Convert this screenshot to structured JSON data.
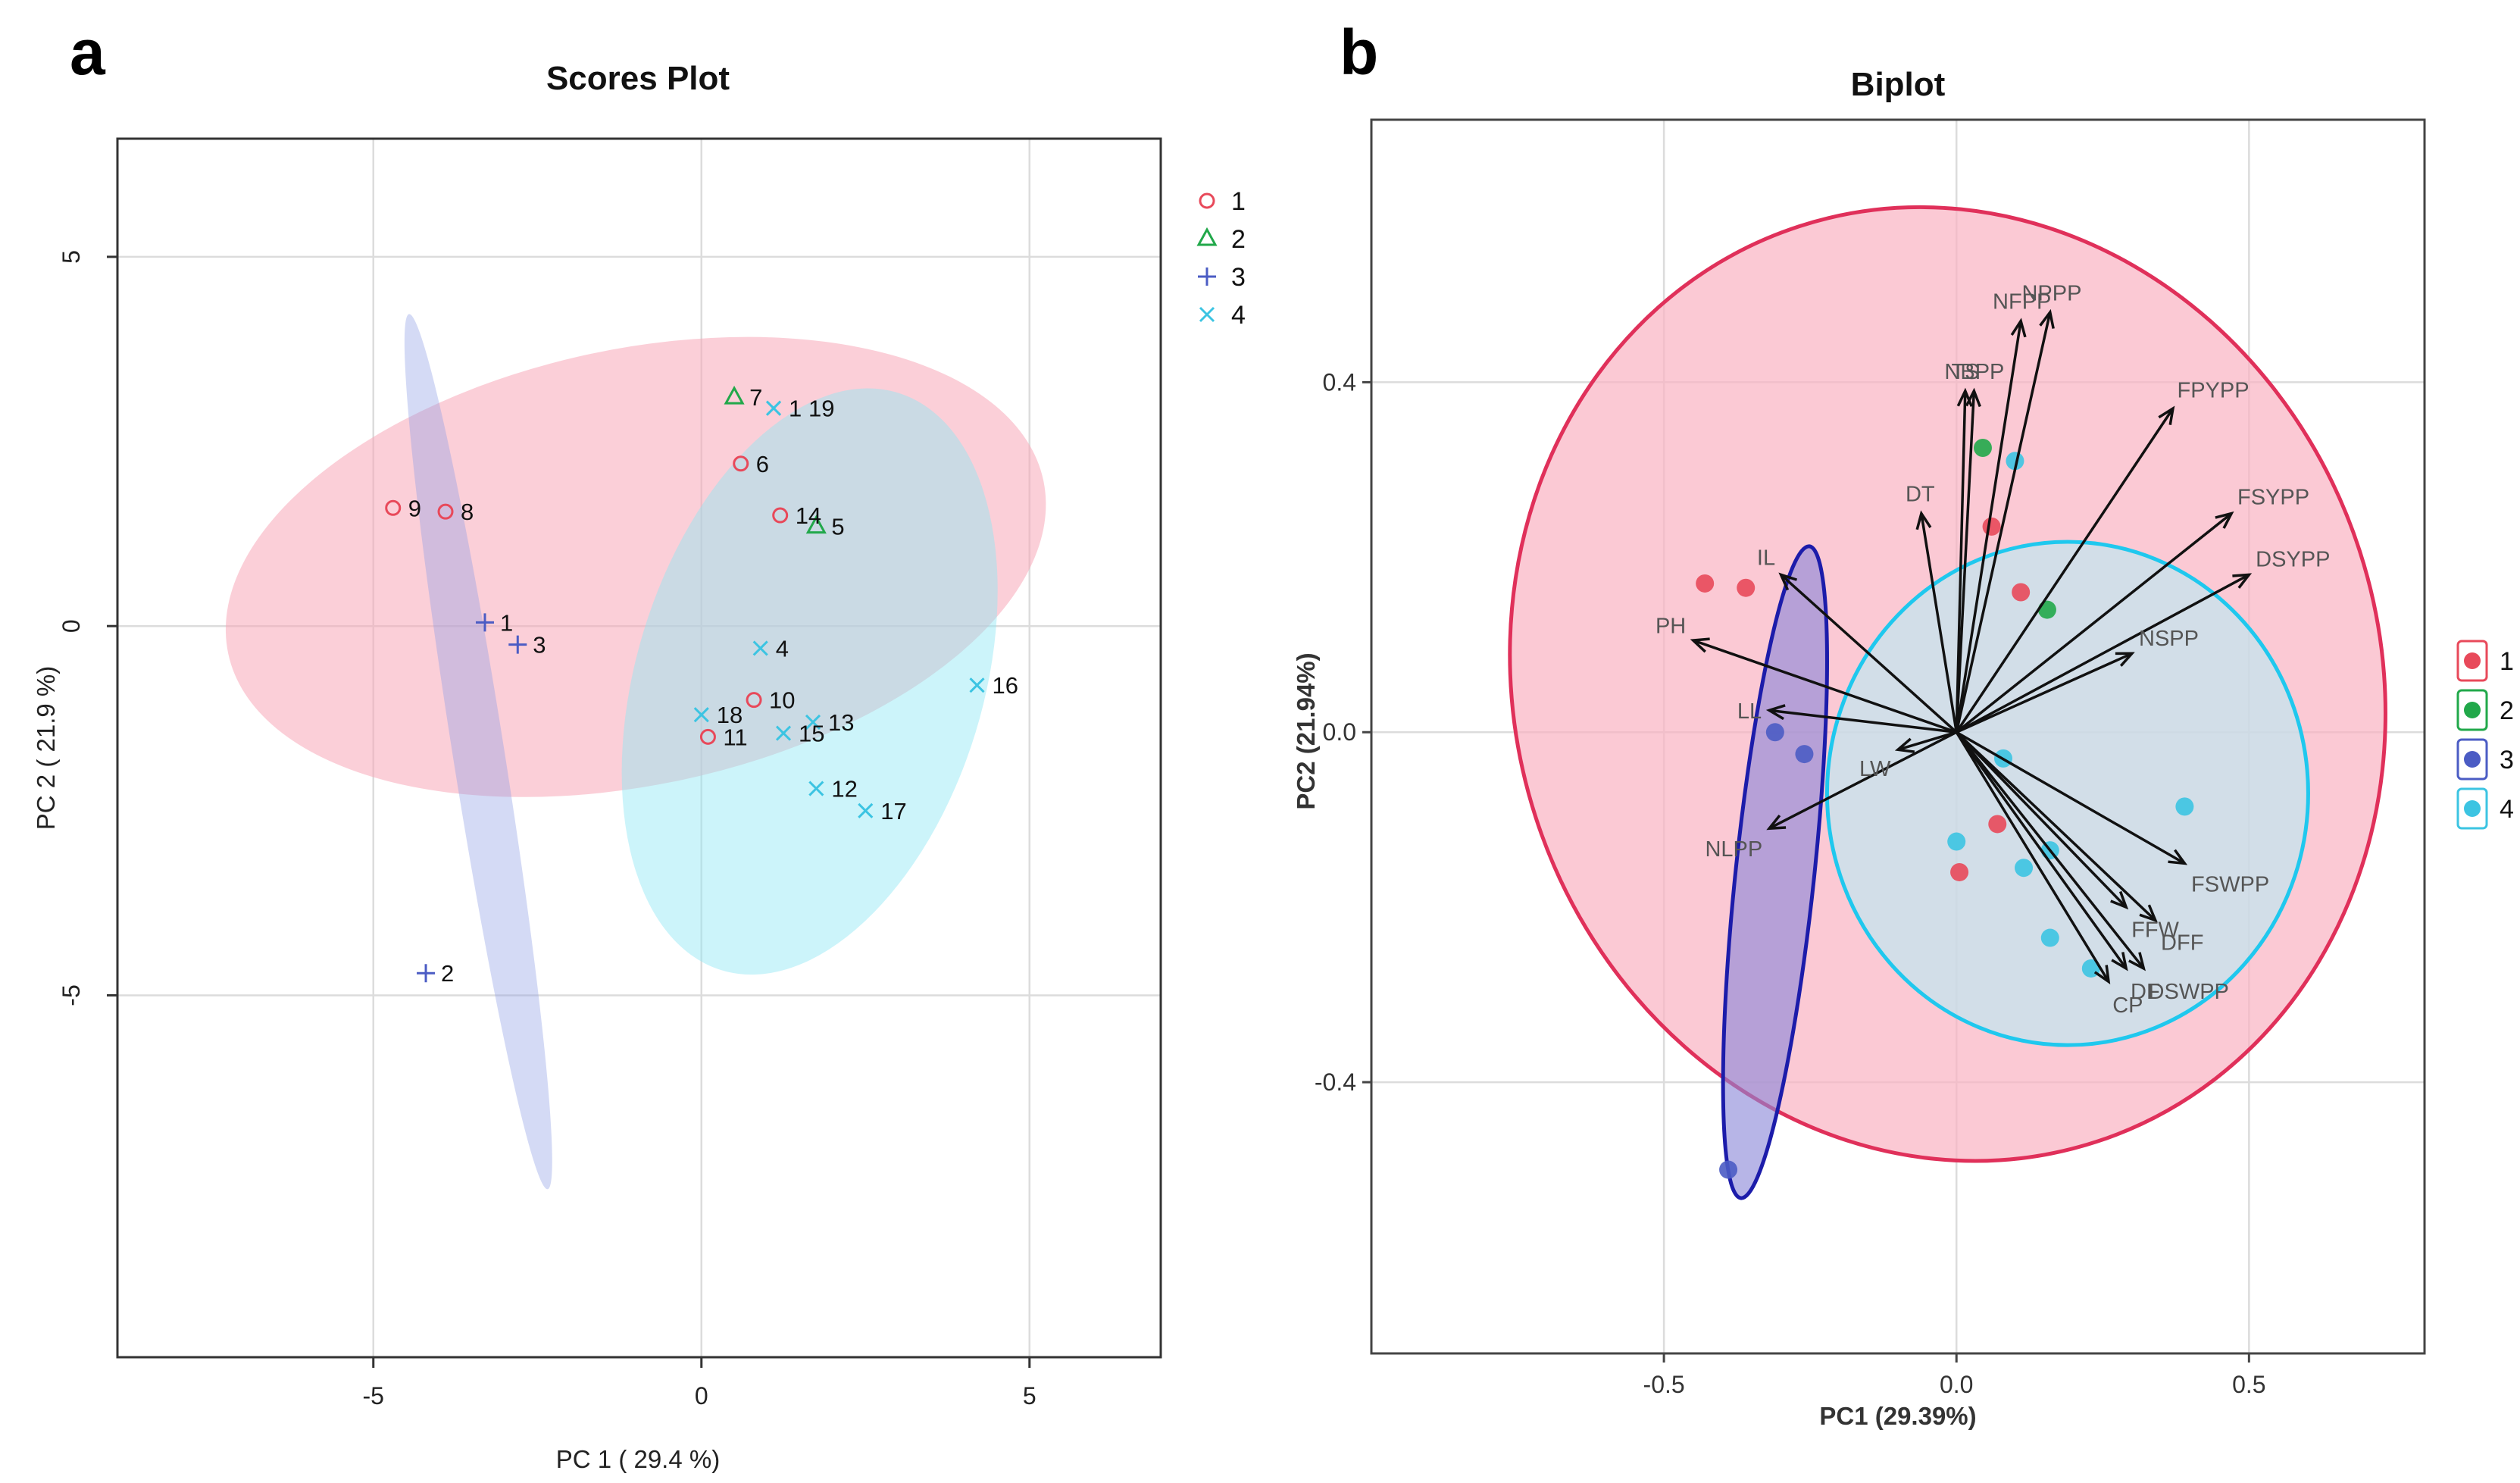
{
  "panels": {
    "a": {
      "letter": "a",
      "title": "Scores Plot",
      "xlabel": "PC 1 ( 29.4 %)",
      "ylabel": "PC 2 ( 21.9 %)",
      "xticks": [
        "-5",
        "0",
        "5"
      ],
      "yticks": [
        "5",
        "0",
        "-5"
      ],
      "legend": [
        "1",
        "2",
        "3",
        "4"
      ]
    },
    "b": {
      "letter": "b",
      "title": "Biplot",
      "xlabel": "PC1 (29.39%)",
      "ylabel": "PC2 (21.94%)",
      "xticks": [
        "-0.5",
        "0.0",
        "0.5"
      ],
      "yticks": [
        "0.4",
        "0.0",
        "-0.4"
      ],
      "legend": [
        "1",
        "2",
        "3",
        "4"
      ]
    }
  },
  "colors": {
    "g1": "#e8495a",
    "g2": "#21a84a",
    "g3": "#4b5cc4",
    "g4": "#3cc4e2",
    "dark_red": "#e0305a",
    "dark_blue": "#1c1caa",
    "cyan_line": "#1fc8ee"
  },
  "chart_data": [
    {
      "type": "scatter",
      "title": "Scores Plot",
      "xlabel": "PC 1 ( 29.4 %)",
      "ylabel": "PC 2 ( 21.9 %)",
      "xlim": [
        -8.9,
        7
      ],
      "ylim": [
        -9.9,
        6.6
      ],
      "groups": [
        "1",
        "2",
        "3",
        "4"
      ],
      "points": [
        {
          "label": "9",
          "group": "1",
          "x": -4.7,
          "y": 1.6
        },
        {
          "label": "8",
          "group": "1",
          "x": -3.9,
          "y": 1.55
        },
        {
          "label": "6",
          "group": "1",
          "x": 0.6,
          "y": 2.2
        },
        {
          "label": "14",
          "group": "1",
          "x": 1.2,
          "y": 1.5
        },
        {
          "label": "10",
          "group": "1",
          "x": 0.8,
          "y": -1.0
        },
        {
          "label": "11",
          "group": "1",
          "x": 0.1,
          "y": -1.5
        },
        {
          "label": "7",
          "group": "2",
          "x": 0.5,
          "y": 3.1
        },
        {
          "label": "5",
          "group": "2",
          "x": 1.75,
          "y": 1.35
        },
        {
          "label": "1",
          "group": "3",
          "x": -3.3,
          "y": 0.05
        },
        {
          "label": "3",
          "group": "3",
          "x": -2.8,
          "y": -0.25
        },
        {
          "label": "2",
          "group": "3",
          "x": -4.2,
          "y": -4.7
        },
        {
          "label": "1",
          "group": "4",
          "x": 1.1,
          "y": 2.95
        },
        {
          "label": "19",
          "group": "4",
          "x": 1.1,
          "y": 2.95
        },
        {
          "label": "4",
          "group": "4",
          "x": 0.9,
          "y": -0.3
        },
        {
          "label": "16",
          "group": "4",
          "x": 4.2,
          "y": -0.8
        },
        {
          "label": "18",
          "group": "4",
          "x": 0.0,
          "y": -1.2
        },
        {
          "label": "13",
          "group": "4",
          "x": 1.7,
          "y": -1.3
        },
        {
          "label": "15",
          "group": "4",
          "x": 1.25,
          "y": -1.45
        },
        {
          "label": "12",
          "group": "4",
          "x": 1.75,
          "y": -2.2
        },
        {
          "label": "17",
          "group": "4",
          "x": 2.5,
          "y": -2.5
        }
      ],
      "ellipses": [
        {
          "group": "1",
          "cx": -1.0,
          "cy": 0.8,
          "rx": 6.35,
          "ry": 2.95,
          "angle_deg": -12
        },
        {
          "group": "4",
          "cx": 1.65,
          "cy": -0.75,
          "rx": 4.6,
          "ry": 2.35,
          "angle_deg": -73
        },
        {
          "group": "3",
          "cx": -3.4,
          "cy": -1.7,
          "rx": 6.75,
          "ry": 0.35,
          "angle_deg": 81
        }
      ]
    },
    {
      "type": "scatter",
      "title": "Biplot",
      "xlabel": "PC1 (29.39%)",
      "ylabel": "PC2 (21.94%)",
      "xlim": [
        -1.0,
        0.8
      ],
      "ylim": [
        -0.71,
        0.7
      ],
      "groups": [
        "1",
        "2",
        "3",
        "4"
      ],
      "points": [
        {
          "group": "1",
          "x": -0.43,
          "y": 0.17
        },
        {
          "group": "1",
          "x": -0.36,
          "y": 0.165
        },
        {
          "group": "1",
          "x": 0.06,
          "y": 0.235
        },
        {
          "group": "1",
          "x": 0.11,
          "y": 0.16
        },
        {
          "group": "1",
          "x": 0.07,
          "y": -0.105
        },
        {
          "group": "1",
          "x": 0.005,
          "y": -0.16
        },
        {
          "group": "2",
          "x": 0.045,
          "y": 0.325
        },
        {
          "group": "2",
          "x": 0.155,
          "y": 0.14
        },
        {
          "group": "3",
          "x": -0.31,
          "y": 0.0
        },
        {
          "group": "3",
          "x": -0.26,
          "y": -0.025
        },
        {
          "group": "3",
          "x": -0.39,
          "y": -0.5
        },
        {
          "group": "4",
          "x": 0.1,
          "y": 0.31
        },
        {
          "group": "4",
          "x": 0.08,
          "y": -0.03
        },
        {
          "group": "4",
          "x": 0.0,
          "y": -0.125
        },
        {
          "group": "4",
          "x": 0.115,
          "y": -0.155
        },
        {
          "group": "4",
          "x": 0.16,
          "y": -0.135
        },
        {
          "group": "4",
          "x": 0.16,
          "y": -0.235
        },
        {
          "group": "4",
          "x": 0.23,
          "y": -0.27
        },
        {
          "group": "4",
          "x": 0.39,
          "y": -0.085
        }
      ],
      "vectors": [
        {
          "label": "NPPP",
          "x": 0.16,
          "y": 0.48
        },
        {
          "label": "NFPP",
          "x": 0.11,
          "y": 0.47
        },
        {
          "label": "NBPP",
          "x": 0.03,
          "y": 0.39
        },
        {
          "label": "TS",
          "x": 0.015,
          "y": 0.39
        },
        {
          "label": "DT",
          "x": -0.06,
          "y": 0.25
        },
        {
          "label": "FPYPP",
          "x": 0.37,
          "y": 0.37
        },
        {
          "label": "FSYPP",
          "x": 0.47,
          "y": 0.25
        },
        {
          "label": "DSYPP",
          "x": 0.5,
          "y": 0.18
        },
        {
          "label": "NSPP",
          "x": 0.3,
          "y": 0.09
        },
        {
          "label": "IL",
          "x": -0.3,
          "y": 0.18
        },
        {
          "label": "PH",
          "x": -0.45,
          "y": 0.105
        },
        {
          "label": "LL",
          "x": -0.32,
          "y": 0.025
        },
        {
          "label": "LW",
          "x": -0.1,
          "y": -0.02
        },
        {
          "label": "NLPP",
          "x": -0.32,
          "y": -0.11
        },
        {
          "label": "FSWPP",
          "x": 0.39,
          "y": -0.15
        },
        {
          "label": "DFF",
          "x": 0.34,
          "y": -0.215
        },
        {
          "label": "FFW",
          "x": 0.29,
          "y": -0.2
        },
        {
          "label": "DF",
          "x": 0.29,
          "y": -0.27
        },
        {
          "label": "DSWPP",
          "x": 0.32,
          "y": -0.27
        },
        {
          "label": "CP",
          "x": 0.26,
          "y": -0.285
        }
      ],
      "ellipses": [
        {
          "group": "1",
          "cx": -0.015,
          "cy": 0.055,
          "rx": 0.74,
          "ry": 0.55,
          "angle_deg": -18
        },
        {
          "group": "4",
          "cx": 0.19,
          "cy": -0.07,
          "rx": 0.43,
          "ry": 0.275,
          "angle_deg": -90
        },
        {
          "group": "3",
          "cx": -0.31,
          "cy": -0.16,
          "rx": 0.56,
          "ry": 0.045,
          "angle_deg": -84
        }
      ]
    }
  ]
}
